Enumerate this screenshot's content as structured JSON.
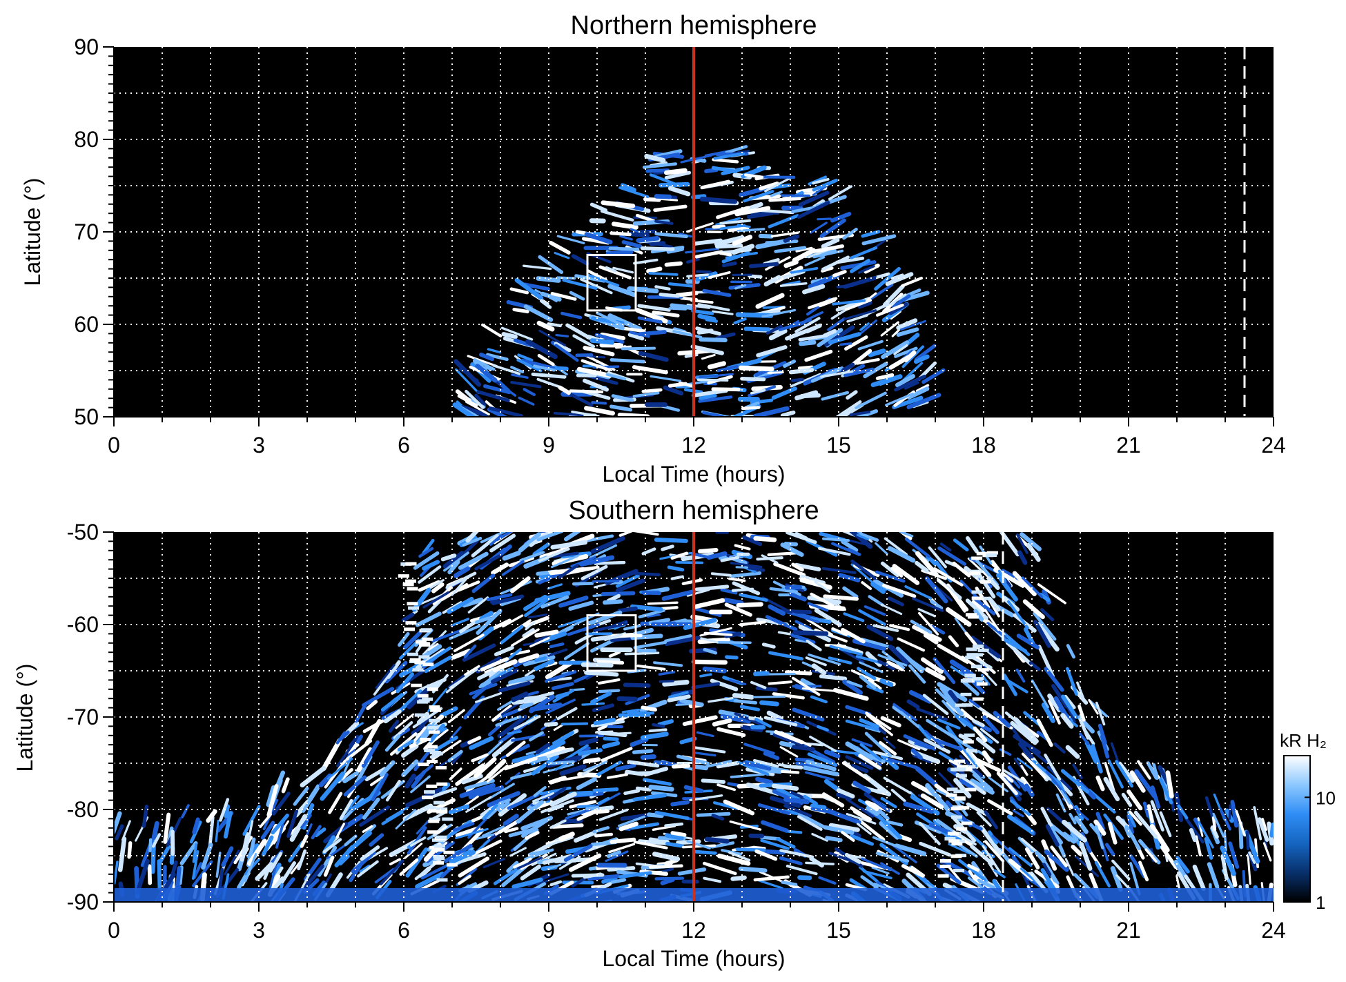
{
  "chart_data": [
    {
      "type": "heatmap",
      "title": "Northern hemisphere",
      "xlabel": "Local Time (hours)",
      "ylabel": "Latitude (°)",
      "xlim": [
        0,
        24
      ],
      "ylim": [
        50,
        90
      ],
      "xticks": [
        "0",
        "3",
        "6",
        "9",
        "12",
        "15",
        "18",
        "21",
        "24"
      ],
      "yticks": [
        "50",
        "60",
        "70",
        "80",
        "90"
      ],
      "grid": true,
      "emission_region": {
        "edge": [
          {
            "lt": 7.0,
            "lat": 50
          },
          {
            "lt": 7.3,
            "lat": 55
          },
          {
            "lt": 7.8,
            "lat": 60
          },
          {
            "lt": 8.4,
            "lat": 65
          },
          {
            "lt": 9.3,
            "lat": 70
          },
          {
            "lt": 10.5,
            "lat": 75
          },
          {
            "lt": 11.3,
            "lat": 78.5
          },
          {
            "lt": 12,
            "lat": 79
          },
          {
            "lt": 13.0,
            "lat": 79
          },
          {
            "lt": 14.0,
            "lat": 77
          },
          {
            "lt": 15.0,
            "lat": 75
          },
          {
            "lt": 15.8,
            "lat": 70
          },
          {
            "lt": 16.5,
            "lat": 65
          },
          {
            "lt": 16.8,
            "lat": 60
          },
          {
            "lt": 17.1,
            "lat": 55
          },
          {
            "lt": 17.2,
            "lat": 50
          }
        ]
      },
      "box": {
        "lt": [
          9.8,
          10.8
        ],
        "lat": [
          61.5,
          67.5
        ]
      },
      "noon_line_lt": 12,
      "dashed_line_lt": 23.4
    },
    {
      "type": "heatmap",
      "title": "Southern hemisphere",
      "xlabel": "Local Time (hours)",
      "ylabel": "Latitude (°)",
      "xlim": [
        0,
        24
      ],
      "ylim": [
        -90,
        -50
      ],
      "xticks": [
        "0",
        "3",
        "6",
        "9",
        "12",
        "15",
        "18",
        "21",
        "24"
      ],
      "yticks": [
        "-90",
        "-80",
        "-70",
        "-60",
        "-50"
      ],
      "grid": true,
      "emission_region": {
        "edge": [
          {
            "lt": 0.0,
            "lat": -81
          },
          {
            "lt": 2.5,
            "lat": -79
          },
          {
            "lt": 4.0,
            "lat": -75
          },
          {
            "lt": 5.0,
            "lat": -70
          },
          {
            "lt": 5.6,
            "lat": -65
          },
          {
            "lt": 6.0,
            "lat": -60
          },
          {
            "lt": 6.3,
            "lat": -55
          },
          {
            "lt": 6.5,
            "lat": -50
          },
          {
            "lt": 19.0,
            "lat": -50
          },
          {
            "lt": 19.3,
            "lat": -55
          },
          {
            "lt": 19.7,
            "lat": -60
          },
          {
            "lt": 20.0,
            "lat": -65
          },
          {
            "lt": 20.6,
            "lat": -70
          },
          {
            "lt": 21.5,
            "lat": -75
          },
          {
            "lt": 22.3,
            "lat": -79
          },
          {
            "lt": 24.0,
            "lat": -81
          }
        ],
        "bright_bands_lt": [
          6.5,
          17.7
        ]
      },
      "box": {
        "lt": [
          9.8,
          10.8
        ],
        "lat": [
          -65,
          -59
        ]
      },
      "noon_line_lt": 12,
      "dashed_line_lt": 18.4
    }
  ],
  "colorbar": {
    "label": "kR H₂",
    "ticks": [
      "1",
      "10"
    ],
    "range": [
      1,
      25
    ],
    "scale": "log",
    "colors": [
      "#000000",
      "#08306b",
      "#1565c0",
      "#2f8df5",
      "#8cc8ff",
      "#ffffff"
    ]
  },
  "colors": {
    "noon_line": "#c8321e",
    "background": "#000000",
    "grid": "#ffffff",
    "emission": [
      "#0a2f8a",
      "#1f5fd6",
      "#2f8df5",
      "#6fb4ff",
      "#cfe8ff",
      "#ffffff"
    ]
  }
}
